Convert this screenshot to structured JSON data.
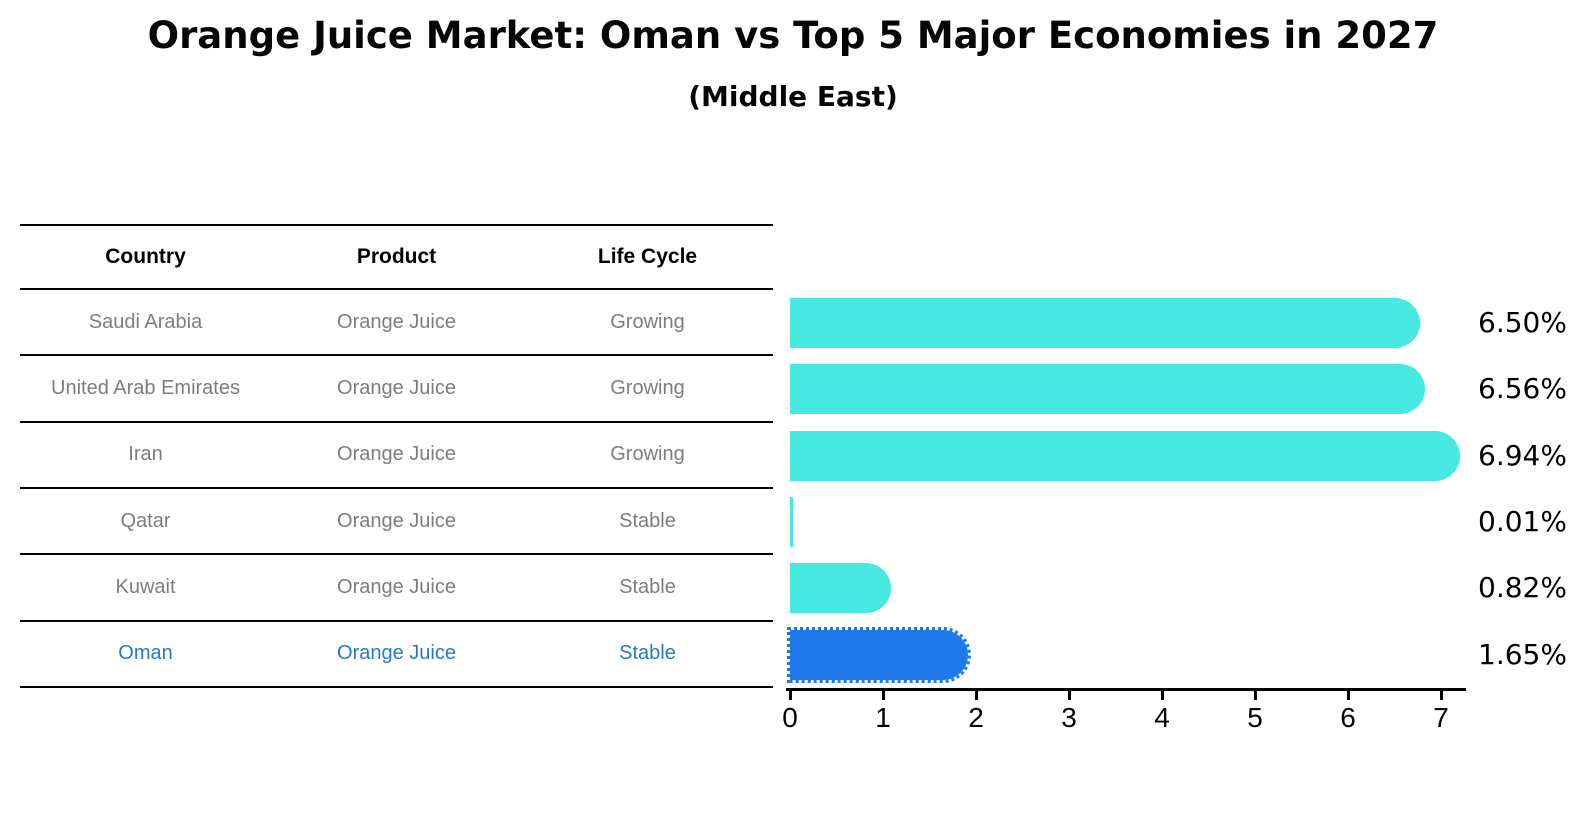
{
  "title": "Orange Juice Market: Oman vs Top 5 Major Economies in 2027",
  "subtitle": "(Middle East)",
  "table": {
    "headers": [
      "Country",
      "Product",
      "Life Cycle"
    ],
    "rows": [
      {
        "country": "Saudi Arabia",
        "product": "Orange Juice",
        "life_cycle": "Growing",
        "highlight": false
      },
      {
        "country": "United Arab Emirates",
        "product": "Orange Juice",
        "life_cycle": "Growing",
        "highlight": false
      },
      {
        "country": "Iran",
        "product": "Orange Juice",
        "life_cycle": "Growing",
        "highlight": false
      },
      {
        "country": "Qatar",
        "product": "Orange Juice",
        "life_cycle": "Stable",
        "highlight": false
      },
      {
        "country": "Kuwait",
        "product": "Orange Juice",
        "life_cycle": "Stable",
        "highlight": false
      },
      {
        "country": "Oman",
        "product": "Orange Juice",
        "life_cycle": "Stable",
        "highlight": true
      }
    ]
  },
  "chart_data": {
    "type": "bar",
    "orientation": "horizontal",
    "title": "Orange Juice Market: Oman vs Top 5 Major Economies in 2027",
    "subtitle": "(Middle East)",
    "categories": [
      "Saudi Arabia",
      "United Arab Emirates",
      "Iran",
      "Qatar",
      "Kuwait",
      "Oman"
    ],
    "values": [
      6.5,
      6.56,
      6.94,
      0.01,
      0.82,
      1.65
    ],
    "value_labels": [
      "6.50%",
      "6.56%",
      "6.94%",
      "0.01%",
      "0.82%",
      "1.65%"
    ],
    "xlim": [
      0,
      7
    ],
    "x_ticks": [
      "0",
      "1",
      "2",
      "3",
      "4",
      "5",
      "6",
      "7"
    ],
    "grid": false,
    "legend": "none",
    "highlight_index": 5,
    "colors": {
      "bar": "#47E8DF",
      "highlight_bar": "#1E78E8",
      "highlight_text": "#2878CB",
      "table_text": "#7d7d7d",
      "axis": "#000000"
    }
  }
}
